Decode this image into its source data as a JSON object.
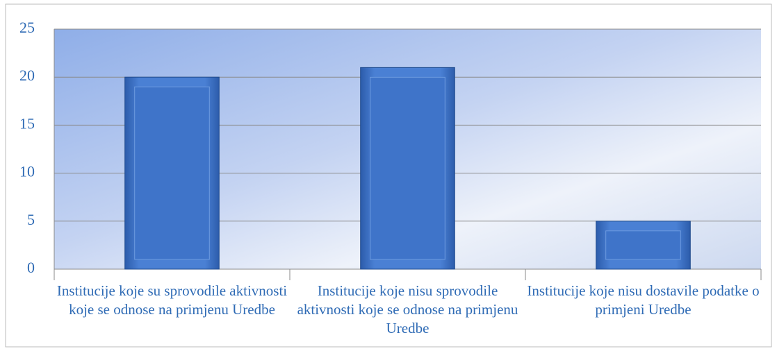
{
  "chart_data": {
    "type": "bar",
    "categories": [
      "Institucije koje su sprovodile aktivnosti koje se odnose na primjenu Uredbe",
      "Institucije koje nisu sprovodile aktivnosti koje se odnose na primjenu Uredbe",
      "Institucije koje nisu dostavile podatke o  primjeni Uredbe"
    ],
    "values": [
      20,
      21,
      5
    ],
    "color": "#3f74c9",
    "ylim": [
      0,
      25
    ],
    "yticks": [
      0,
      5,
      10,
      15,
      20,
      25
    ],
    "grid": true
  }
}
